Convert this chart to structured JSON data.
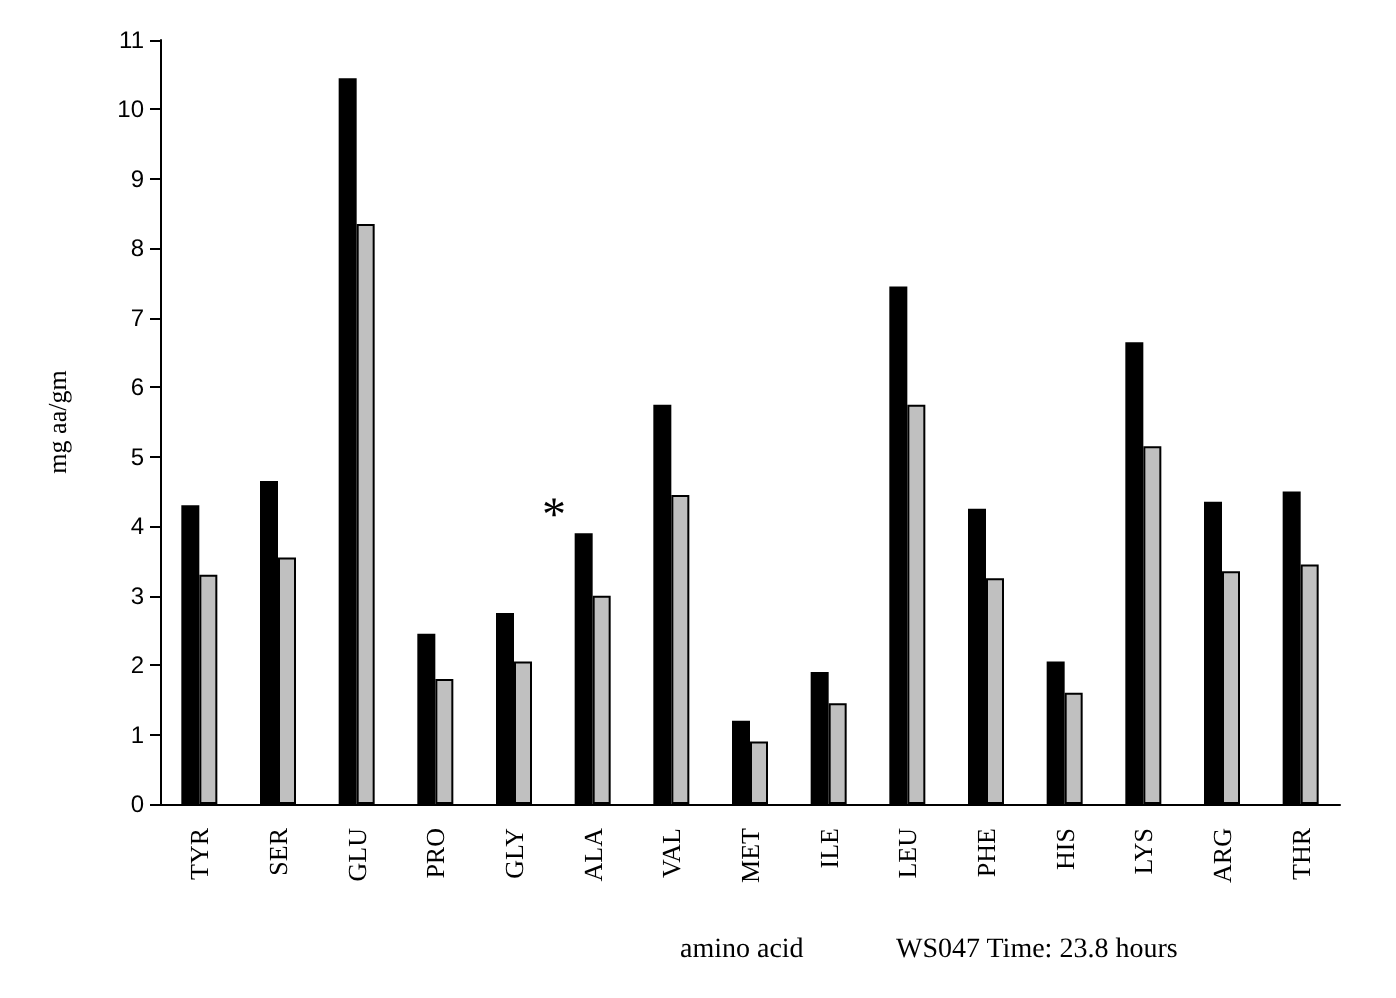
{
  "chart_data": {
    "type": "bar",
    "ylabel": "mg aa/gm",
    "xlabel": "amino acid",
    "categories": [
      "TYR",
      "SER",
      "GLU",
      "PRO",
      "GLY",
      "ALA",
      "VAL",
      "MET",
      "ILE",
      "LEU",
      "PHE",
      "HIS",
      "LYS",
      "ARG",
      "THR"
    ],
    "series": [
      {
        "color": "#000000",
        "values": [
          4.3,
          4.65,
          10.45,
          2.45,
          2.75,
          3.9,
          5.75,
          1.2,
          1.9,
          7.45,
          4.25,
          2.05,
          6.65,
          4.35,
          4.5
        ]
      },
      {
        "color": "#c0c0c0",
        "values": [
          3.3,
          3.55,
          8.35,
          1.8,
          2.05,
          3.0,
          4.45,
          0.9,
          1.45,
          5.75,
          3.25,
          1.6,
          5.15,
          3.35,
          3.45
        ]
      }
    ],
    "ylim": [
      0,
      11
    ],
    "yticks": [
      0,
      1,
      2,
      3,
      4,
      5,
      6,
      7,
      8,
      9,
      10,
      11
    ],
    "grid": false,
    "annotations": [
      "*",
      "WS047 Time: 23.8 hours"
    ]
  }
}
